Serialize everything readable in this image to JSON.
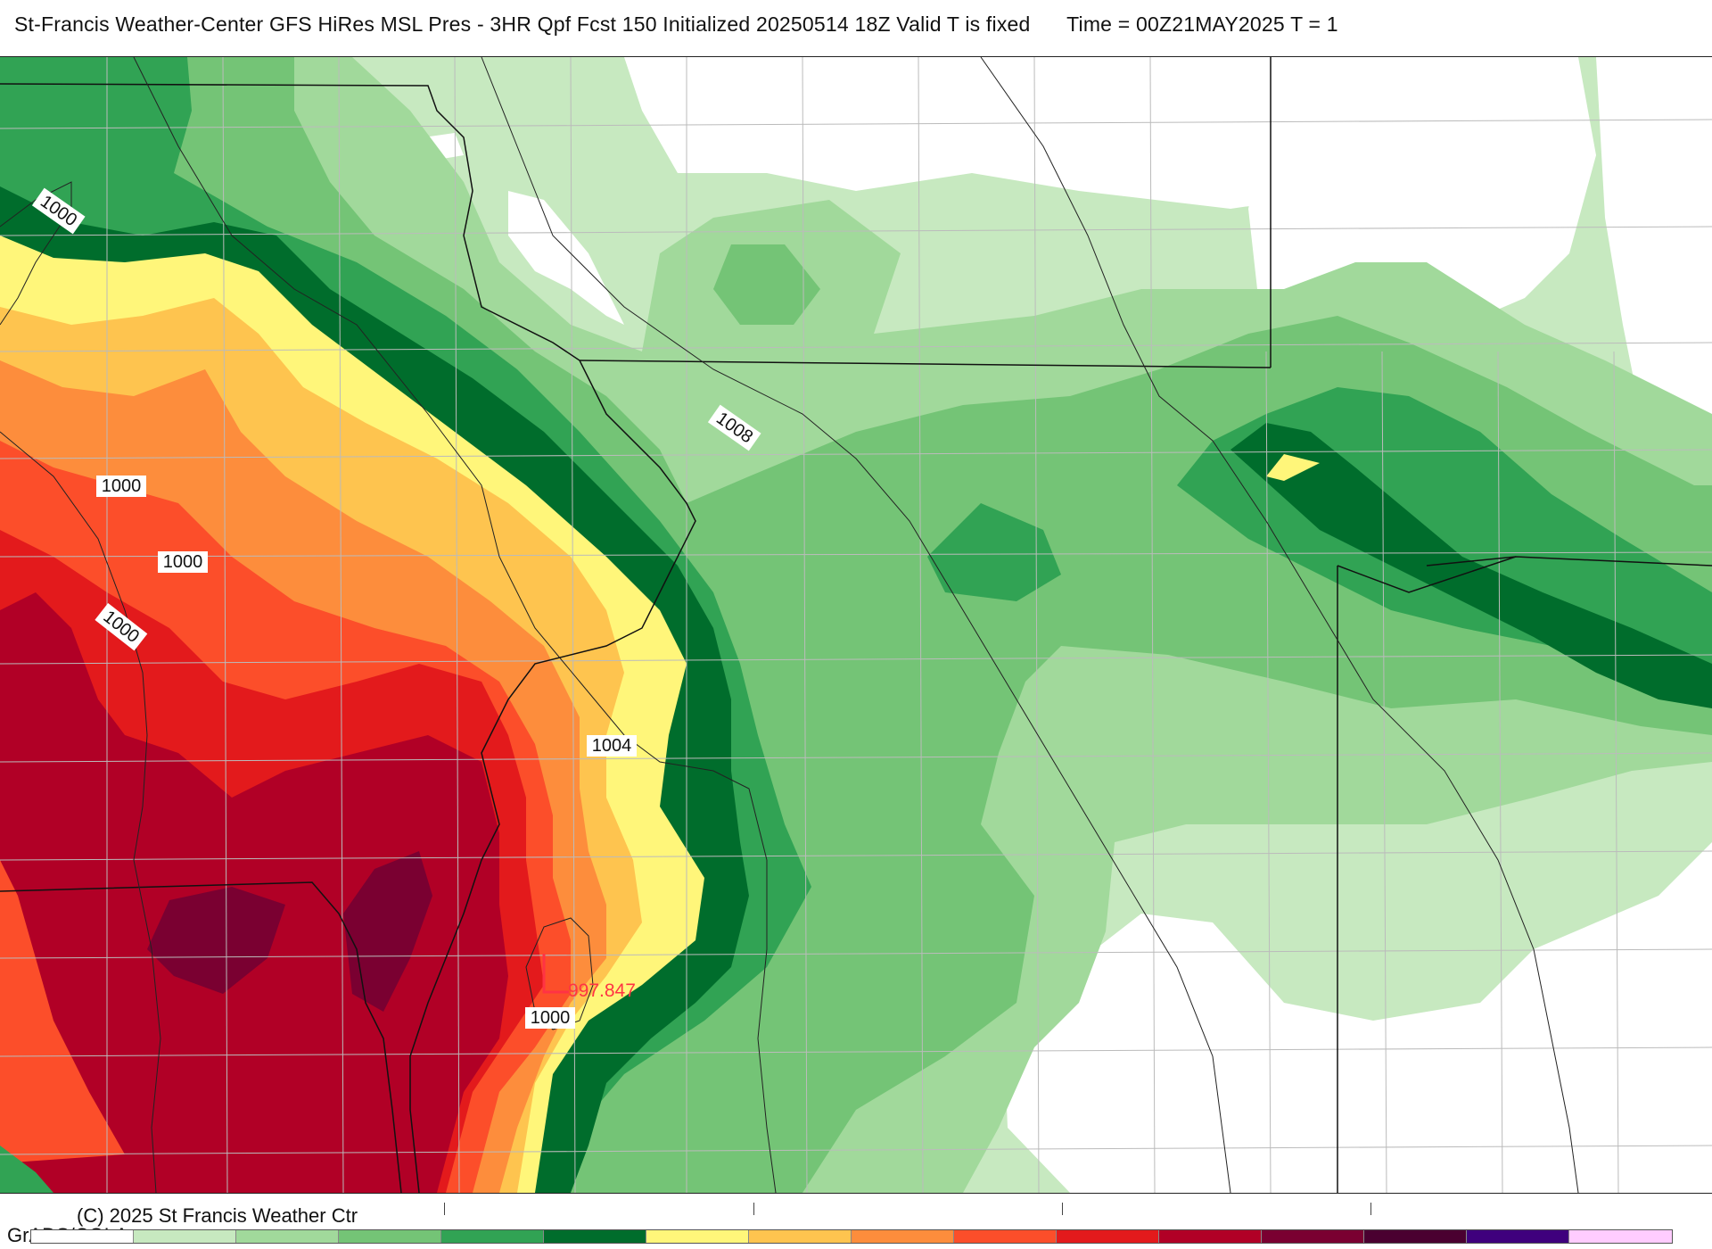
{
  "header": {
    "title": "St-Francis Weather-Center GFS HiRes MSL Pres - 3HR Qpf Fcst 150 Initialized 20250514 18Z Valid T is fixed",
    "time_label": "Time = 00Z21MAY2025  T = 1"
  },
  "map": {
    "isobar_labels": [
      "1000",
      "1000",
      "1000",
      "1000",
      "1004",
      "1008",
      "1000"
    ],
    "low_center_value": "997.847",
    "colors": {
      "water": "#ffffff",
      "border": "#111111",
      "county": "#bbbbbb",
      "low_marker": "#ff3344"
    }
  },
  "footer": {
    "copyright": "(C) 2025 St Francis Weather Ctr",
    "software": "GrADS/COLA"
  },
  "colorbar": {
    "colors": [
      "#ffffff",
      "#c7e9c0",
      "#a1d99b",
      "#74c476",
      "#31a354",
      "#006d2c",
      "#fff67a",
      "#fec44f",
      "#fd8d3c",
      "#fc4e2a",
      "#e31a1c",
      "#b10026",
      "#7a0031",
      "#4a0030",
      "#3f007d",
      "#ffccff"
    ]
  }
}
